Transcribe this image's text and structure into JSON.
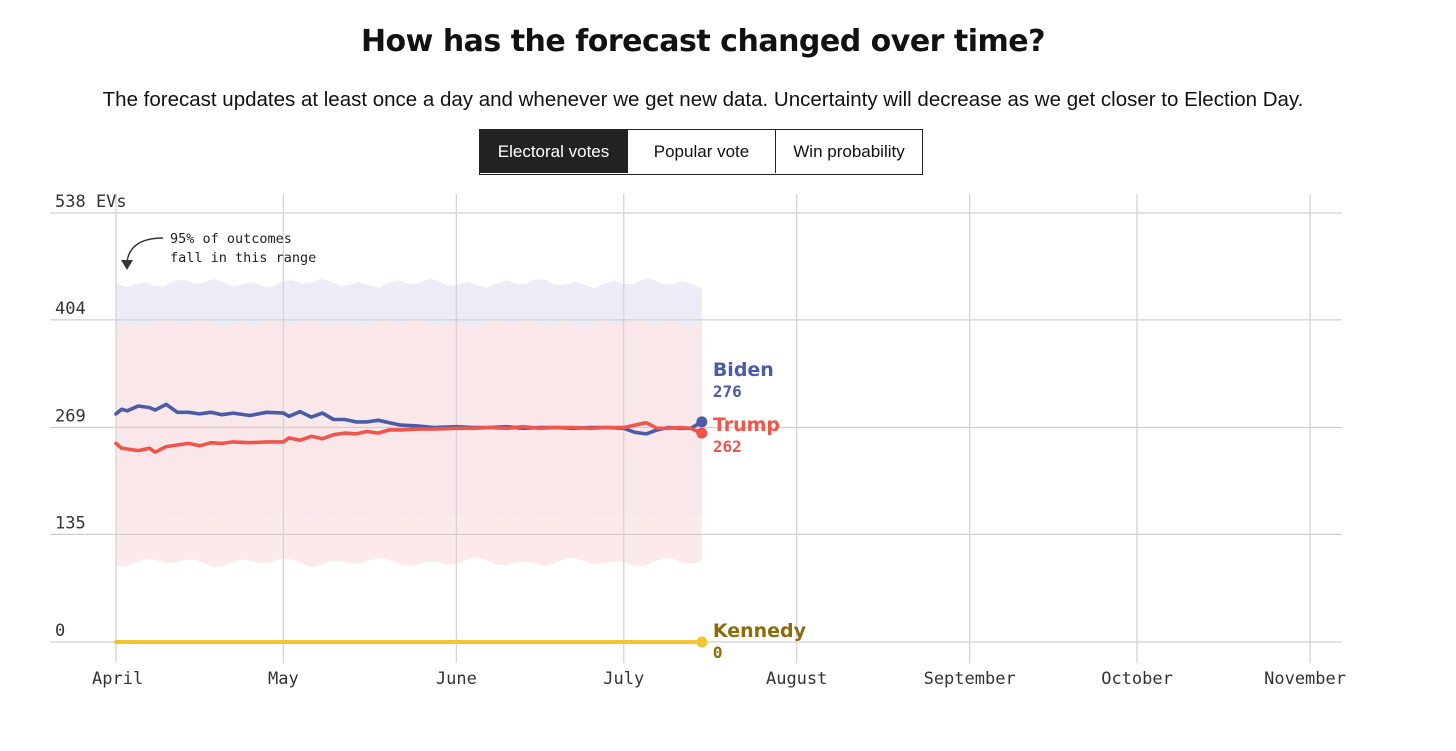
{
  "header": {
    "title": "How has the forecast changed over time?",
    "subtitle": "The forecast updates at least once a day and whenever we get new data. Uncertainty will decrease as we get closer to Election Day."
  },
  "tabs": [
    {
      "label": "Electoral votes",
      "active": true
    },
    {
      "label": "Popular vote",
      "active": false
    },
    {
      "label": "Win probability",
      "active": false
    }
  ],
  "chart_data": {
    "type": "line",
    "title": "How has the forecast changed over time?",
    "y_ticks": [
      {
        "value": 538,
        "label": "538 EVs"
      },
      {
        "value": 404,
        "label": "404"
      },
      {
        "value": 269,
        "label": "269"
      },
      {
        "value": 135,
        "label": "135"
      },
      {
        "value": 0,
        "label": "0"
      }
    ],
    "ylim": [
      0,
      538
    ],
    "xlim": [
      "2024-04-01",
      "2024-11-05"
    ],
    "x_ticks": [
      {
        "date": "2024-04-01",
        "label": "April"
      },
      {
        "date": "2024-05-01",
        "label": "May"
      },
      {
        "date": "2024-06-01",
        "label": "June"
      },
      {
        "date": "2024-07-01",
        "label": "July"
      },
      {
        "date": "2024-08-01",
        "label": "August"
      },
      {
        "date": "2024-09-01",
        "label": "September"
      },
      {
        "date": "2024-10-01",
        "label": "October"
      },
      {
        "date": "2024-11-01",
        "label": "November"
      }
    ],
    "grid": true,
    "annotation": [
      "95% of outcomes",
      "fall in this range"
    ],
    "series": [
      {
        "name": "Biden",
        "color": "#4a5ba8",
        "label_color": "#4a5ba8",
        "final_value_label": "276",
        "x": [
          "2024-04-01",
          "2024-04-02",
          "2024-04-03",
          "2024-04-05",
          "2024-04-07",
          "2024-04-08",
          "2024-04-10",
          "2024-04-12",
          "2024-04-14",
          "2024-04-16",
          "2024-04-18",
          "2024-04-20",
          "2024-04-22",
          "2024-04-25",
          "2024-04-28",
          "2024-05-01",
          "2024-05-02",
          "2024-05-04",
          "2024-05-06",
          "2024-05-08",
          "2024-05-10",
          "2024-05-12",
          "2024-05-14",
          "2024-05-16",
          "2024-05-18",
          "2024-05-20",
          "2024-05-22",
          "2024-05-25",
          "2024-05-28",
          "2024-06-01",
          "2024-06-04",
          "2024-06-07",
          "2024-06-10",
          "2024-06-13",
          "2024-06-16",
          "2024-06-19",
          "2024-06-22",
          "2024-06-25",
          "2024-06-28",
          "2024-07-01",
          "2024-07-03",
          "2024-07-05",
          "2024-07-07",
          "2024-07-09",
          "2024-07-11",
          "2024-07-13",
          "2024-07-15"
        ],
        "values": [
          286,
          292,
          290,
          296,
          294,
          291,
          298,
          288,
          288,
          286,
          288,
          285,
          287,
          284,
          288,
          287,
          283,
          289,
          282,
          287,
          279,
          279,
          276,
          276,
          278,
          275,
          272,
          271,
          269,
          270,
          269,
          269,
          270,
          268,
          269,
          269,
          268,
          269,
          269,
          268,
          263,
          261,
          266,
          269,
          268,
          268,
          276
        ]
      },
      {
        "name": "Trump",
        "color": "#f0554b",
        "label_color": "#f0554b",
        "final_value_label": "262",
        "x": [
          "2024-04-01",
          "2024-04-02",
          "2024-04-03",
          "2024-04-05",
          "2024-04-07",
          "2024-04-08",
          "2024-04-10",
          "2024-04-12",
          "2024-04-14",
          "2024-04-16",
          "2024-04-18",
          "2024-04-20",
          "2024-04-22",
          "2024-04-25",
          "2024-04-28",
          "2024-05-01",
          "2024-05-02",
          "2024-05-04",
          "2024-05-06",
          "2024-05-08",
          "2024-05-10",
          "2024-05-12",
          "2024-05-14",
          "2024-05-16",
          "2024-05-18",
          "2024-05-20",
          "2024-05-22",
          "2024-05-25",
          "2024-05-28",
          "2024-06-01",
          "2024-06-04",
          "2024-06-07",
          "2024-06-10",
          "2024-06-13",
          "2024-06-16",
          "2024-06-19",
          "2024-06-22",
          "2024-06-25",
          "2024-06-28",
          "2024-07-01",
          "2024-07-03",
          "2024-07-05",
          "2024-07-07",
          "2024-07-09",
          "2024-07-11",
          "2024-07-13",
          "2024-07-15"
        ],
        "values": [
          249,
          243,
          242,
          240,
          243,
          238,
          245,
          247,
          249,
          246,
          250,
          249,
          251,
          250,
          251,
          251,
          256,
          253,
          258,
          255,
          260,
          262,
          261,
          264,
          262,
          266,
          266,
          267,
          267,
          268,
          268,
          269,
          268,
          270,
          268,
          269,
          269,
          268,
          269,
          269,
          272,
          275,
          268,
          268,
          269,
          268,
          262
        ]
      },
      {
        "name": "Kennedy",
        "color": "#f4c531",
        "label_color": "#8a6d0a",
        "final_value_label": "0",
        "x": [
          "2024-04-01",
          "2024-07-15"
        ],
        "values": [
          0,
          0
        ]
      }
    ],
    "bands": [
      {
        "name": "Biden",
        "color": "#e8e9f5",
        "lower": 160,
        "upper": 450
      },
      {
        "name": "Trump",
        "color": "#fbe6e6",
        "lower": 100,
        "upper": 400
      }
    ]
  }
}
